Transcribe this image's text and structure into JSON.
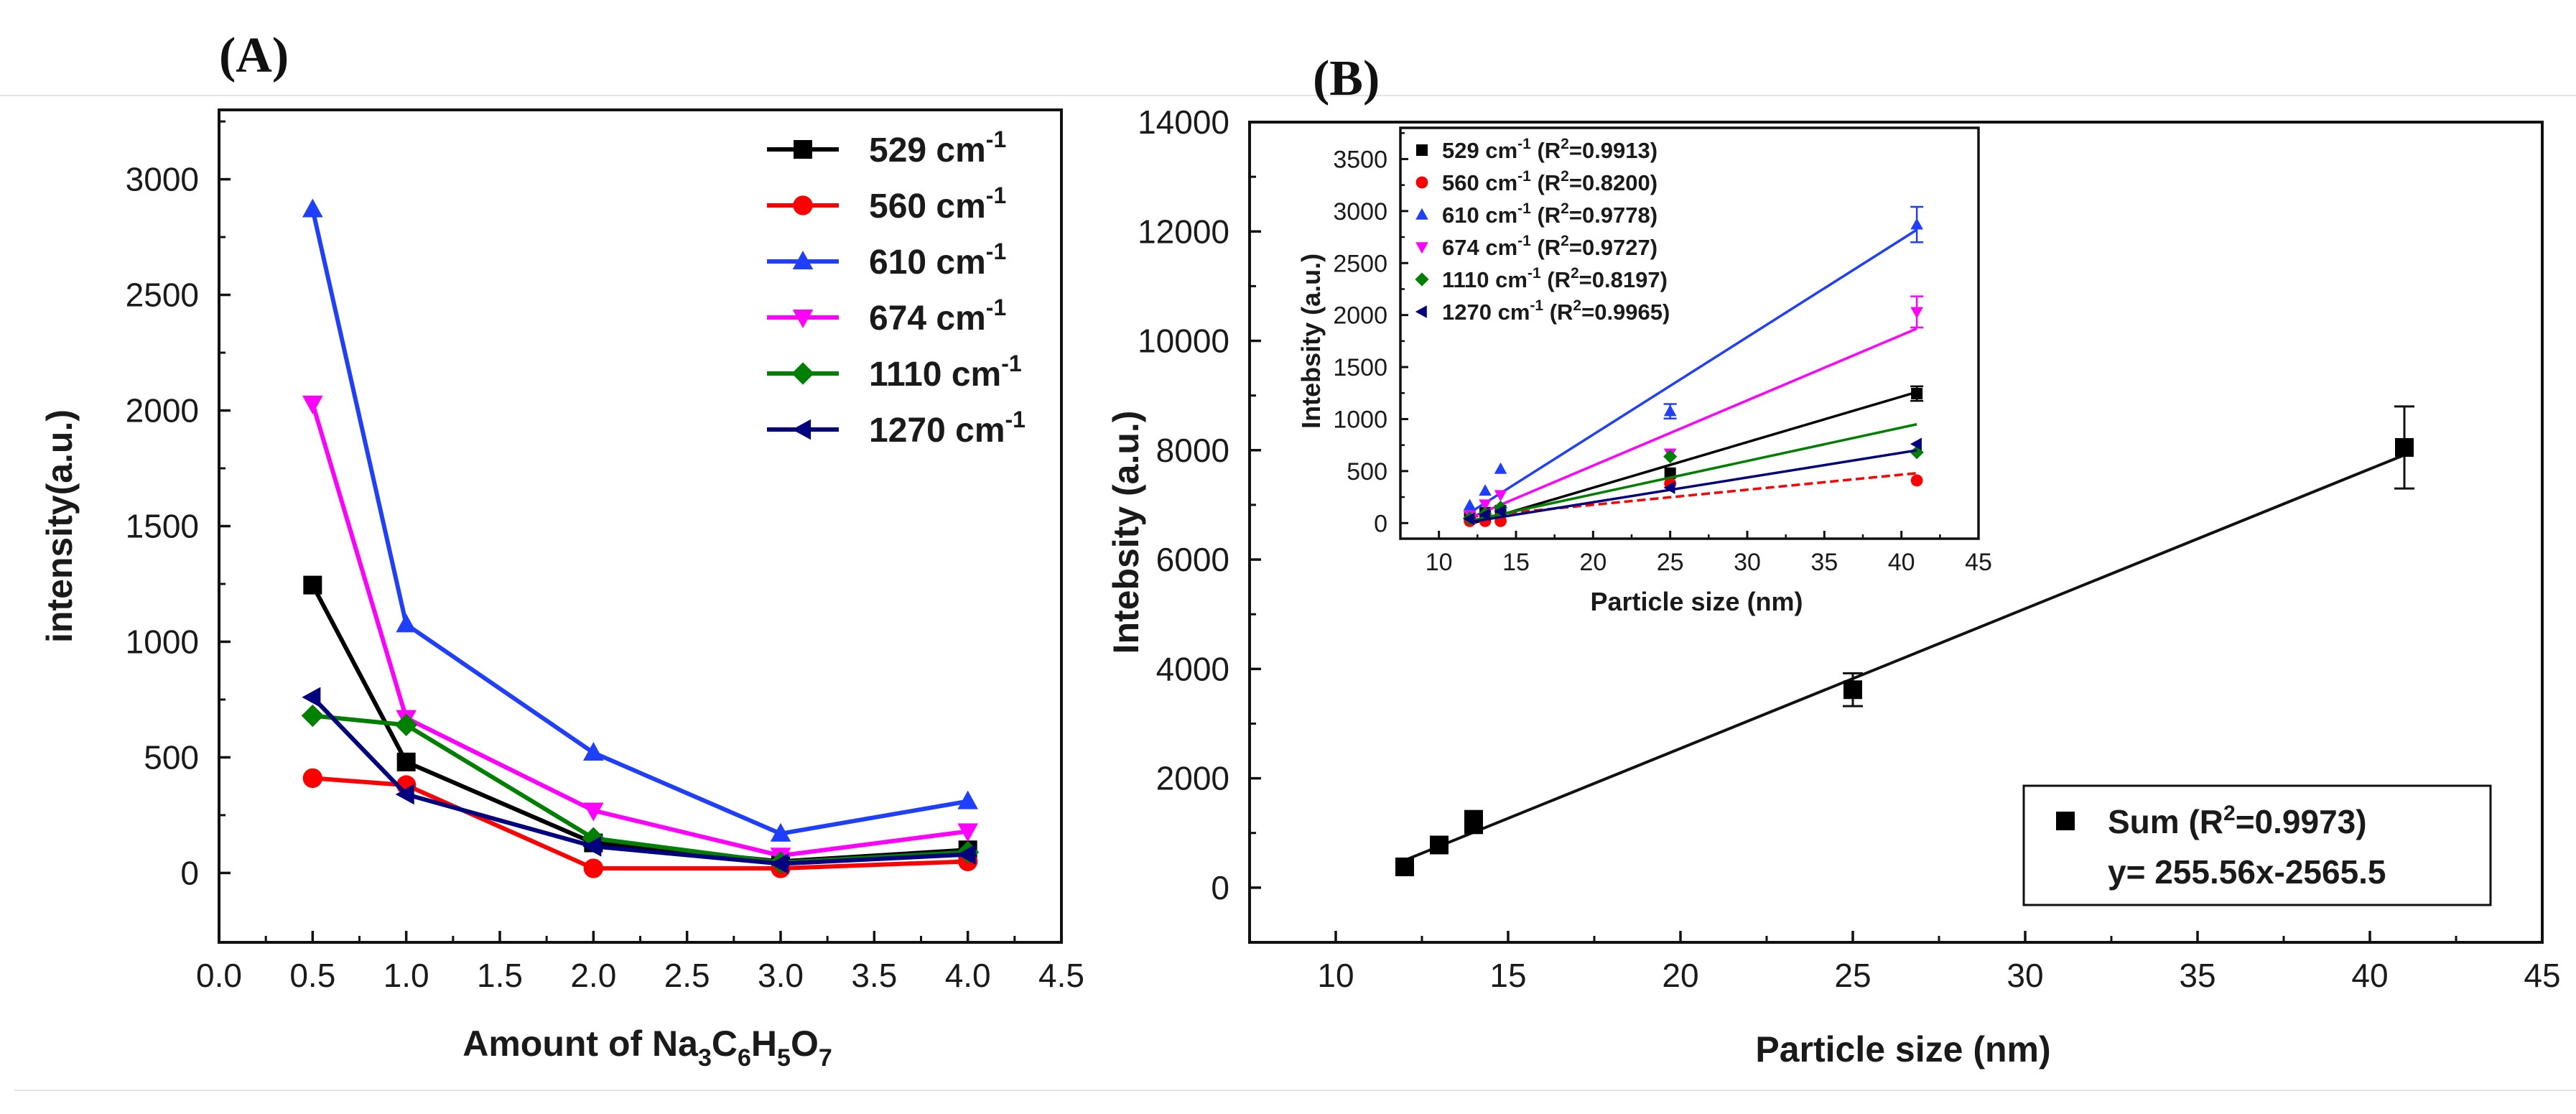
{
  "chart_data": [
    {
      "type": "line",
      "panel_label": "(A)",
      "xlabel": "Amount of Na",
      "xlabel_parts": [
        "Amount of Na",
        "3",
        "C",
        "6",
        "H",
        "5",
        "O",
        "7"
      ],
      "ylabel": "intensity(a.u.)",
      "xlim": [
        0.0,
        4.5
      ],
      "ylim": [
        -300,
        3300
      ],
      "xticks": [
        "0.0",
        "0.5",
        "1.0",
        "1.5",
        "2.0",
        "2.5",
        "3.0",
        "3.5",
        "4.0",
        "4.5"
      ],
      "yticks": [
        "0",
        "500",
        "1000",
        "1500",
        "2000",
        "2500",
        "3000"
      ],
      "legend_placement": "top-right",
      "x": [
        0.5,
        1.0,
        2.0,
        3.0,
        4.0
      ],
      "series": [
        {
          "name": "529 cm",
          "sup": "-1",
          "color": "#000000",
          "marker": "square",
          "values": [
            1245,
            480,
            130,
            50,
            100
          ]
        },
        {
          "name": "560 cm",
          "sup": "-1",
          "color": "#ff0000",
          "marker": "circle",
          "values": [
            410,
            380,
            20,
            20,
            50
          ]
        },
        {
          "name": "610 cm",
          "sup": "-1",
          "color": "#1f3fff",
          "marker": "triangle-up",
          "values": [
            2870,
            1075,
            520,
            170,
            310
          ]
        },
        {
          "name": "674 cm",
          "sup": "-1",
          "color": "#ff00ff",
          "marker": "triangle-down",
          "values": [
            2030,
            670,
            270,
            75,
            180
          ]
        },
        {
          "name": "1110 cm",
          "sup": "-1",
          "color": "#008000",
          "marker": "diamond",
          "values": [
            680,
            640,
            150,
            45,
            90
          ]
        },
        {
          "name": "1270 cm",
          "sup": "-1",
          "color": "#000080",
          "marker": "triangle-left",
          "values": [
            760,
            340,
            115,
            40,
            80
          ]
        }
      ]
    },
    {
      "type": "scatter",
      "panel_label": "(B)",
      "xlabel": "Particle size (nm)",
      "ylabel": "Intebsity (a.u.)",
      "xlim": [
        7.5,
        45
      ],
      "ylim": [
        -1000,
        14000
      ],
      "xticks": [
        "10",
        "15",
        "20",
        "25",
        "30",
        "35",
        "40",
        "45"
      ],
      "yticks": [
        "0",
        "2000",
        "4000",
        "6000",
        "8000",
        "10000",
        "12000",
        "14000"
      ],
      "legend_placement": "bottom-right",
      "series": [
        {
          "name": "Sum (R",
          "sup": "2",
          "suffix": "=0.9973)",
          "color": "#000000",
          "marker": "square",
          "x": [
            12,
            13,
            14,
            14,
            25,
            41
          ],
          "values": [
            380,
            780,
            1150,
            1250,
            3620,
            8050
          ],
          "errors": [
            0,
            0,
            0,
            0,
            300,
            750
          ]
        }
      ],
      "fit_label": "y= 255.56x-2565.5",
      "fit": {
        "slope": 255.56,
        "intercept": -2565.5,
        "x_range": [
          12,
          41
        ]
      }
    },
    {
      "type": "scatter",
      "inset": true,
      "xlabel": "Particle size (nm)",
      "ylabel": "Intebsity (a.u.)",
      "xlim": [
        7.5,
        45
      ],
      "ylim": [
        -150,
        3800
      ],
      "xticks": [
        "10",
        "15",
        "20",
        "25",
        "30",
        "35",
        "40",
        "45"
      ],
      "yticks": [
        "0",
        "500",
        "1000",
        "1500",
        "2000",
        "2500",
        "3000",
        "3500"
      ],
      "legend_placement": "top-left",
      "x": [
        12,
        13,
        14,
        25,
        41
      ],
      "series": [
        {
          "name": "529 cm",
          "sup": "-1",
          "r2": " (R",
          "r2sup": "2",
          "r2val": "=0.9913)",
          "color": "#000000",
          "marker": "square",
          "values": [
            60,
            100,
            120,
            480,
            1245
          ],
          "fit": [
            -10,
            1260
          ]
        },
        {
          "name": "560 cm",
          "sup": "-1",
          "r2": " (R",
          "r2sup": "2",
          "r2val": "=0.8200)",
          "color": "#ff0000",
          "marker": "circle",
          "values": [
            20,
            20,
            20,
            380,
            410
          ],
          "fit": [
            60,
            480
          ]
        },
        {
          "name": "610 cm",
          "sup": "-1",
          "r2": " (R",
          "r2sup": "2",
          "r2val": "=0.9778)",
          "color": "#1f3fff",
          "marker": "triangle-up",
          "values": [
            170,
            310,
            520,
            1075,
            2870
          ],
          "fit": [
            100,
            2820
          ]
        },
        {
          "name": "674 cm",
          "sup": "-1",
          "r2": " (R",
          "r2sup": "2",
          "r2val": "=0.9727)",
          "color": "#ff00ff",
          "marker": "triangle-down",
          "values": [
            75,
            180,
            270,
            670,
            2030
          ],
          "fit": [
            50,
            1870
          ]
        },
        {
          "name": "1110 cm",
          "sup": "-1",
          "r2": " (R",
          "r2sup": "2",
          "r2val": "=0.8197)",
          "color": "#008000",
          "marker": "diamond",
          "values": [
            45,
            90,
            150,
            640,
            680
          ],
          "fit": [
            20,
            950
          ]
        },
        {
          "name": "1270 cm",
          "sup": "-1",
          "r2": " (R",
          "r2sup": "2",
          "r2val": "=0.9965)",
          "color": "#000080",
          "marker": "triangle-left",
          "values": [
            40,
            80,
            115,
            340,
            760
          ],
          "fit": [
            10,
            700
          ]
        }
      ]
    }
  ]
}
